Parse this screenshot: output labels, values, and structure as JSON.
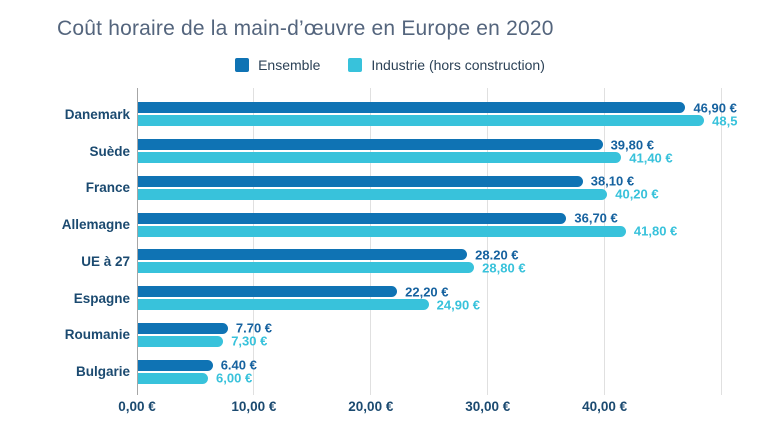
{
  "colors": {
    "background": "#ffffff",
    "title_text": "#54657d",
    "legend_text": "#2c4257",
    "category_text": "#1b4a70",
    "tick_text": "#1b4a70",
    "gridline": "#e0e0e0",
    "axis_line": "#a6a6a6",
    "ensemble": "#0f73b4",
    "industrie": "#38c2db"
  },
  "chart_data": {
    "type": "bar",
    "orientation": "horizontal",
    "title": "Coût horaire de la main-d’œuvre en Europe en 2020",
    "categories": [
      "Danemark",
      "Suède",
      "France",
      "Allemagne",
      "UE à 27",
      "Espagne",
      "Roumanie",
      "Bulgarie"
    ],
    "series": [
      {
        "name": "Ensemble",
        "color": "#0f73b4",
        "label_color": "#16629f",
        "values": [
          46.9,
          39.8,
          38.1,
          36.7,
          28.2,
          22.2,
          7.7,
          6.4
        ],
        "labels": [
          "46,90 €",
          "39,80 €",
          "38,10 €",
          "36,70 €",
          "28.20 €",
          "22,20 €",
          "7.70 €",
          "6.40 €"
        ]
      },
      {
        "name": "Industrie (hors construction)",
        "color": "#38c2db",
        "label_color": "#38c2db",
        "values": [
          48.5,
          41.4,
          40.2,
          41.8,
          28.8,
          24.9,
          7.3,
          6.0
        ],
        "labels": [
          "48,5",
          "41,40 €",
          "40,20 €",
          "41,80 €",
          "28,80 €",
          "24,90 €",
          "7,30 €",
          "6,00 €"
        ]
      }
    ],
    "x_axis": {
      "max": 55,
      "ticks": [
        {
          "v": 0,
          "label": "0,00 €"
        },
        {
          "v": 10,
          "label": "10,00 €"
        },
        {
          "v": 20,
          "label": "20,00 €"
        },
        {
          "v": 30,
          "label": "30,00 €"
        },
        {
          "v": 40,
          "label": "40,00 €"
        }
      ],
      "gridlines": [
        10,
        20,
        30,
        40,
        50
      ]
    },
    "legend_position": "top",
    "grid": true,
    "ylim_note": "bars grow rightward from 0; plot spans 0–55 €"
  }
}
